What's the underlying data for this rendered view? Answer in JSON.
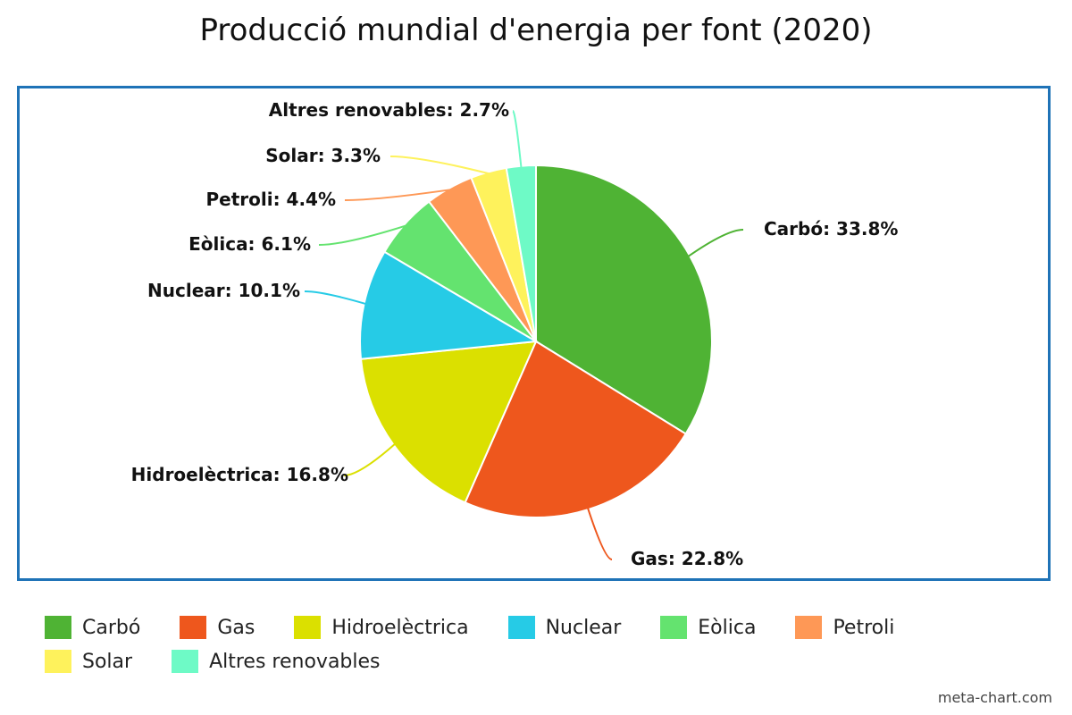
{
  "chart_data": {
    "type": "pie",
    "title": "Producció mundial d'energia per font (2020)",
    "slices": [
      {
        "label": "Carbó",
        "value": 33.8,
        "display": "Carbó: 33.8%",
        "color": "#4fb334"
      },
      {
        "label": "Gas",
        "value": 22.8,
        "display": "Gas: 22.8%",
        "color": "#ee571d"
      },
      {
        "label": "Hidroelèctrica",
        "value": 16.8,
        "display": "Hidroelèctrica: 16.8%",
        "color": "#dbe000"
      },
      {
        "label": "Nuclear",
        "value": 10.1,
        "display": "Nuclear: 10.1%",
        "color": "#26cbe6"
      },
      {
        "label": "Eòlica",
        "value": 6.1,
        "display": "Eòlica: 6.1%",
        "color": "#64e36f"
      },
      {
        "label": "Petroli",
        "value": 4.4,
        "display": "Petroli: 4.4%",
        "color": "#fe9856"
      },
      {
        "label": "Solar",
        "value": 3.3,
        "display": "Solar: 3.3%",
        "color": "#fef25c"
      },
      {
        "label": "Altres renovables",
        "value": 2.7,
        "display": "Altres renovables: 2.7%",
        "color": "#6efac6"
      }
    ],
    "legend_position": "bottom",
    "frame_color": "#1f73b7"
  },
  "credit": "meta-chart.com"
}
